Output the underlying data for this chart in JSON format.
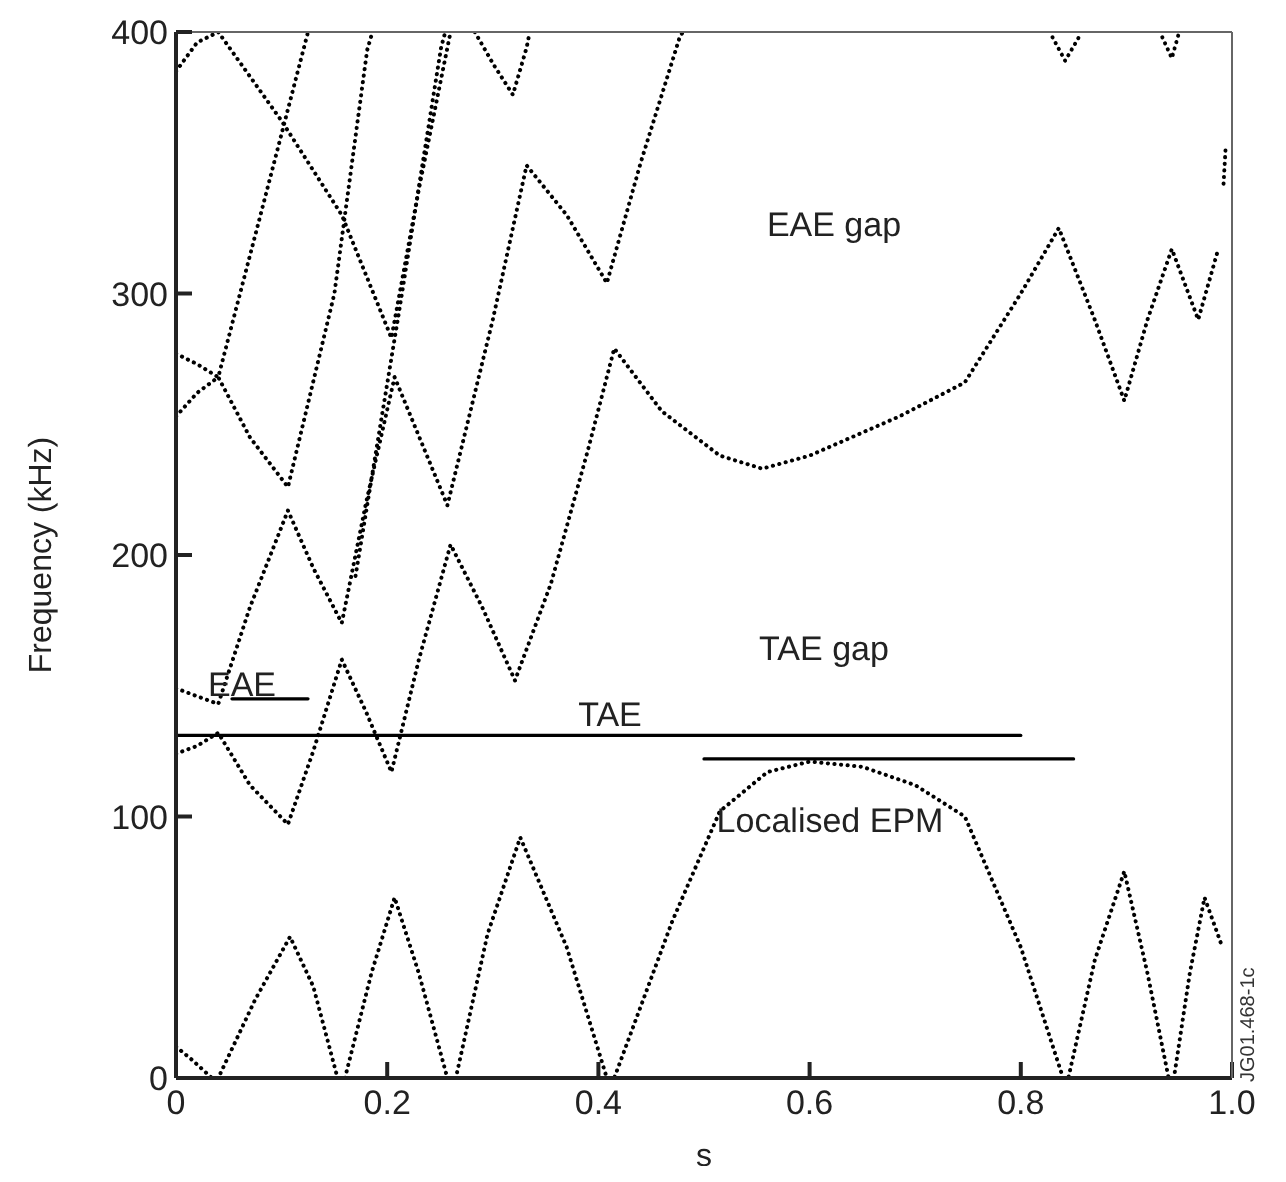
{
  "chart_data": {
    "type": "line",
    "xlabel": "s",
    "ylabel": "Frequency (kHz)",
    "xlim": [
      0,
      1
    ],
    "xticks": [
      0,
      0.2,
      0.4,
      0.6,
      0.8,
      {
        "value": 1,
        "label": "1.0"
      }
    ],
    "ylim": [
      0,
      400
    ],
    "yticks": [
      0,
      100,
      200,
      300,
      400
    ],
    "grid": false,
    "legend": false,
    "marker": "none",
    "series": [
      {
        "color": "#000000",
        "line_style": "dotted",
        "x": [
          0,
          0.015,
          0.034,
          0.04,
          0.075,
          0.108,
          0.13,
          0.153,
          0.16,
          0.185,
          0.207,
          0.23,
          0.257,
          0.265,
          0.295,
          0.326,
          0.37,
          0.408,
          0.415,
          0.47,
          0.515,
          0.56,
          0.6,
          0.65,
          0.7,
          0.747,
          0.8,
          0.84,
          0.845,
          0.87,
          0.898,
          0.92,
          0.94,
          0.945,
          0.96,
          0.974,
          0.99
        ],
        "values": [
          12,
          7,
          0,
          0,
          30,
          54,
          35,
          0,
          0,
          40,
          69,
          40,
          0,
          0,
          55,
          92,
          50,
          0,
          0,
          60,
          102,
          117,
          121,
          119,
          112,
          100,
          50,
          0,
          0,
          45,
          79,
          40,
          0,
          0,
          40,
          69,
          51
        ]
      },
      {
        "color": "#000000",
        "line_style": "dotted",
        "x": [
          0,
          0.02,
          0.04,
          0.07,
          0.106,
          0.13,
          0.157,
          0.18,
          0.204,
          0.23,
          0.26,
          0.29,
          0.321,
          0.355,
          0.39,
          0.415,
          0.46,
          0.515,
          0.555,
          0.6,
          0.685,
          0.747,
          0.8,
          0.836,
          0.87,
          0.898,
          0.92,
          0.943,
          0.968,
          0.987
        ],
        "values": [
          124,
          127,
          132,
          112,
          97,
          125,
          160,
          140,
          117,
          160,
          204,
          180,
          152,
          189,
          240,
          279,
          255,
          238,
          233,
          238,
          253,
          266,
          300,
          325,
          290,
          259,
          290,
          317,
          290,
          317
        ]
      },
      {
        "color": "#000000",
        "line_style": "dotted",
        "x": [
          0,
          0.02,
          0.04,
          0.07,
          0.106,
          0.13,
          0.157,
          0.18,
          0.207,
          0.257,
          0.3,
          0.332,
          0.37,
          0.408,
          0.44,
          0.477,
          0.48
        ],
        "values": [
          149,
          146,
          143,
          180,
          217,
          195,
          174,
          220,
          268,
          219,
          290,
          349,
          330,
          304,
          350,
          398,
          400
        ]
      },
      {
        "color": "#000000",
        "line_style": "dotted",
        "x": [
          0,
          0.02,
          0.04,
          0.07,
          0.106,
          0.15,
          0.181,
          0.186
        ],
        "values": [
          253,
          262,
          268,
          245,
          226,
          300,
          393,
          400
        ]
      },
      {
        "color": "#000000",
        "line_style": "dotted",
        "x": [
          0,
          0.02,
          0.04,
          0.08,
          0.125
        ],
        "values": [
          277,
          273,
          268,
          330,
          400
        ]
      },
      {
        "color": "#000000",
        "line_style": "dotted",
        "x": [
          0.17,
          0.21,
          0.251,
          0.255
        ],
        "values": [
          192,
          290,
          394,
          400
        ]
      },
      {
        "color": "#000000",
        "line_style": "dotted",
        "x": [
          0,
          0.02,
          0.04,
          0.1,
          0.157,
          0.204,
          0.23,
          0.26
        ],
        "values": [
          385,
          396,
          400,
          366,
          330,
          283,
          340,
          400
        ]
      },
      {
        "color": "#000000",
        "line_style": "dotted",
        "x": [
          0.283,
          0.3,
          0.319,
          0.332,
          0.335
        ],
        "values": [
          400,
          388,
          376,
          394,
          400
        ]
      },
      {
        "color": "#000000",
        "line_style": "dotted",
        "x": [
          0.83,
          0.842,
          0.855
        ],
        "values": [
          398,
          389,
          398
        ]
      },
      {
        "color": "#000000",
        "line_style": "dotted",
        "x": [
          0.934,
          0.943,
          0.95
        ],
        "values": [
          398,
          390,
          400
        ]
      },
      {
        "color": "#000000",
        "line_style": "dotted",
        "x": [
          0.992,
          0.994
        ],
        "values": [
          342,
          356
        ]
      },
      {
        "color": "#000000",
        "line_style": "solid",
        "x": [
          0,
          0.8
        ],
        "values": [
          131,
          131
        ]
      },
      {
        "color": "#000000",
        "line_style": "solid",
        "x": [
          0.5,
          0.85
        ],
        "values": [
          122,
          122
        ]
      },
      {
        "color": "#000000",
        "line_style": "solid",
        "x": [
          0.053,
          0.125
        ],
        "values": [
          145,
          145
        ]
      }
    ],
    "annotations": [
      "EAE",
      "TAE",
      "Localised EPM",
      "TAE gap",
      "EAE gap",
      "JG01.468-1c"
    ]
  }
}
